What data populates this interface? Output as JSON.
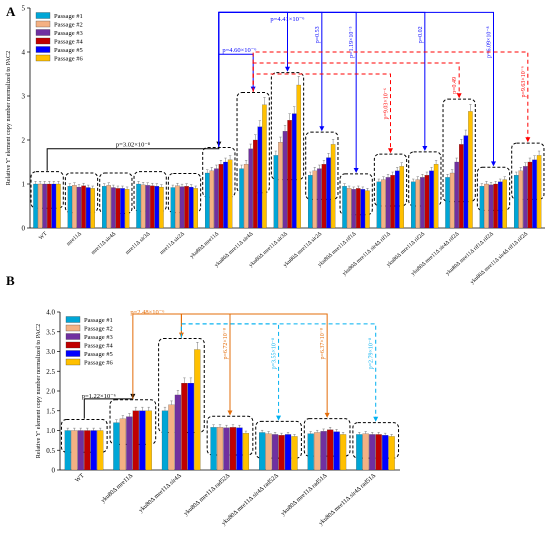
{
  "chart_data": [
    {
      "panel": "A",
      "type": "bar",
      "ylabel": "Relative Y' element copy number normalized to PAC2",
      "ylim": [
        0,
        5
      ],
      "yticks": [
        0,
        1,
        2,
        3,
        4,
        5
      ],
      "legend": {
        "placement": "top-left"
      },
      "series": [
        {
          "name": "Passage #1",
          "color": "#00a6d6"
        },
        {
          "name": "Passage #2",
          "color": "#f4b183"
        },
        {
          "name": "Passage #3",
          "color": "#7030a0"
        },
        {
          "name": "Passage #4",
          "color": "#c00000"
        },
        {
          "name": "Passage #5",
          "color": "#0000ff"
        },
        {
          "name": "Passage #6",
          "color": "#ffc000"
        }
      ],
      "categories": [
        "WT",
        "mre11Δ",
        "mre11Δ sir4Δ",
        "mre11Δ sir3Δ",
        "mre11Δ sir2Δ",
        "yku80Δ mre11Δ",
        "yku80Δ mre11Δ sir4Δ",
        "yku80Δ mre11Δ sir3Δ",
        "yku80Δ mre11Δ sir2Δ",
        "yku80Δ mre11Δ rif1Δ",
        "yku80Δ mre11Δ sir4Δ rif1Δ",
        "yku80Δ mre11Δ rif2Δ",
        "yku80Δ mre11Δ sir4Δ rif2Δ",
        "yku80Δ mre11Δ rif1Δ rif2Δ",
        "yku80Δ mre11Δ sir4Δ rif1Δ rif2Δ"
      ],
      "values": [
        [
          1.0,
          1.0,
          1.0,
          1.0,
          1.0,
          1.0
        ],
        [
          0.95,
          0.97,
          0.93,
          0.96,
          0.92,
          0.9
        ],
        [
          0.95,
          0.97,
          0.92,
          0.9,
          0.9,
          0.88
        ],
        [
          1.0,
          0.98,
          0.97,
          0.96,
          0.95,
          0.93
        ],
        [
          0.92,
          0.96,
          0.94,
          0.95,
          0.93,
          0.9
        ],
        [
          1.25,
          1.3,
          1.35,
          1.45,
          1.5,
          1.55
        ],
        [
          1.35,
          1.45,
          1.8,
          2.0,
          2.3,
          2.8
        ],
        [
          1.65,
          1.95,
          2.2,
          2.45,
          2.6,
          3.25
        ],
        [
          1.2,
          1.3,
          1.35,
          1.45,
          1.6,
          1.9
        ],
        [
          0.95,
          0.9,
          0.88,
          0.9,
          0.88,
          0.85
        ],
        [
          1.05,
          1.1,
          1.15,
          1.2,
          1.3,
          1.4
        ],
        [
          1.05,
          1.1,
          1.15,
          1.2,
          1.3,
          1.45
        ],
        [
          1.15,
          1.25,
          1.5,
          1.9,
          2.1,
          2.65
        ],
        [
          0.95,
          1.0,
          0.98,
          1.0,
          1.05,
          1.1
        ],
        [
          1.2,
          1.3,
          1.4,
          1.5,
          1.55,
          1.65
        ]
      ],
      "annotations": [
        {
          "text": "p=3.02×10⁻⁸",
          "color": "#000000"
        },
        {
          "text": "p=4.60×10⁻⁶",
          "color": "#0000ff"
        },
        {
          "text": "p=4.41×10⁻⁶",
          "color": "#0000ff"
        },
        {
          "text": "p=0.53",
          "color": "#0000ff"
        },
        {
          "text": "p=1.19×10⁻⁵",
          "color": "#0000ff"
        },
        {
          "text": "p=0.02",
          "color": "#0000ff"
        },
        {
          "text": "p=6.09×10⁻⁸",
          "color": "#0000ff"
        },
        {
          "text": "p=9.03×10⁻⁶",
          "color": "#ff0000"
        },
        {
          "text": "p=0.49",
          "color": "#ff0000"
        },
        {
          "text": "p=9.63×10⁻⁶",
          "color": "#ff0000"
        }
      ]
    },
    {
      "panel": "B",
      "type": "bar",
      "ylabel": "Relative Y' element copy number normalized to PAC2",
      "ylim": [
        0,
        4.0
      ],
      "yticks": [
        "0",
        "0.5",
        "1.0",
        "1.5",
        "2.0",
        "2.5",
        "3.0",
        "3.5",
        "4.0"
      ],
      "legend": {
        "placement": "top-left"
      },
      "series": [
        {
          "name": "Passage #1",
          "color": "#00a6d6"
        },
        {
          "name": "Passage #2",
          "color": "#f4b183"
        },
        {
          "name": "Passage #3",
          "color": "#7030a0"
        },
        {
          "name": "Passage #4",
          "color": "#c00000"
        },
        {
          "name": "Passage #5",
          "color": "#0000ff"
        },
        {
          "name": "Passage #6",
          "color": "#ffc000"
        }
      ],
      "categories": [
        "WT",
        "yku80Δ mre11Δ",
        "yku80Δ mre11Δ sir4Δ",
        "yku80Δ mre11Δ rad52Δ",
        "yku80Δ mre11Δ sir4Δ rad52Δ",
        "yku80Δ mre11Δ rad51Δ",
        "yku80Δ mre11Δ sir4Δ rad51Δ"
      ],
      "values": [
        [
          1.0,
          1.0,
          1.0,
          1.0,
          1.0,
          1.0
        ],
        [
          1.2,
          1.3,
          1.35,
          1.5,
          1.5,
          1.5
        ],
        [
          1.5,
          1.65,
          1.9,
          2.2,
          2.2,
          3.05
        ],
        [
          1.08,
          1.08,
          1.07,
          1.08,
          1.07,
          0.93
        ],
        [
          0.95,
          0.92,
          0.9,
          0.88,
          0.9,
          0.85
        ],
        [
          0.92,
          0.95,
          0.98,
          1.02,
          0.97,
          0.9
        ],
        [
          0.9,
          0.92,
          0.9,
          0.9,
          0.88,
          0.85
        ]
      ],
      "annotations": [
        {
          "text": "p=1.22×10⁻⁶",
          "color": "#000000"
        },
        {
          "text": "p=2.48×10⁻⁶",
          "color": "#e36c09"
        },
        {
          "text": "p=6.72×10⁻⁸",
          "color": "#e36c09"
        },
        {
          "text": "p=6.37×10⁻⁸",
          "color": "#e36c09"
        },
        {
          "text": "p=3.55×10⁻⁸",
          "color": "#00b0f0"
        },
        {
          "text": "p=2.79×10⁻⁸",
          "color": "#00b0f0"
        }
      ]
    }
  ],
  "panel_labels": [
    "A",
    "B"
  ]
}
